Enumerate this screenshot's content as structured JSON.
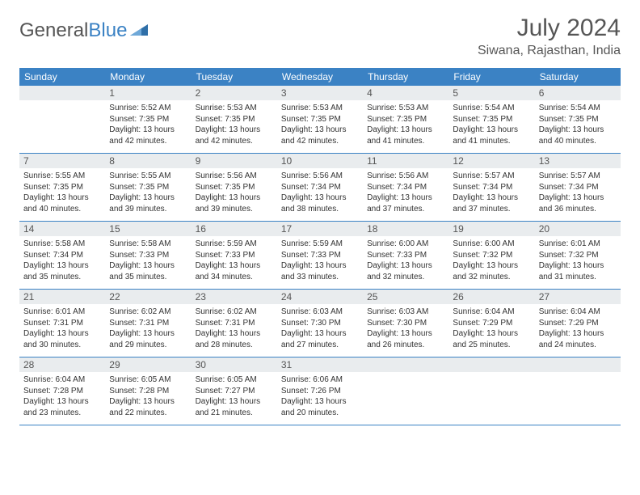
{
  "logo": {
    "textGray": "General",
    "textBlue": "Blue"
  },
  "title": "July 2024",
  "location": "Siwana, Rajasthan, India",
  "colors": {
    "headerBg": "#3b82c4",
    "headerText": "#ffffff",
    "dayNumBg": "#e9ecee",
    "borderColor": "#3b82c4",
    "bodyText": "#333333",
    "titleText": "#565656"
  },
  "dayNames": [
    "Sunday",
    "Monday",
    "Tuesday",
    "Wednesday",
    "Thursday",
    "Friday",
    "Saturday"
  ],
  "weeks": [
    [
      null,
      {
        "n": "1",
        "sr": "5:52 AM",
        "ss": "7:35 PM",
        "dl": "13 hours and 42 minutes."
      },
      {
        "n": "2",
        "sr": "5:53 AM",
        "ss": "7:35 PM",
        "dl": "13 hours and 42 minutes."
      },
      {
        "n": "3",
        "sr": "5:53 AM",
        "ss": "7:35 PM",
        "dl": "13 hours and 42 minutes."
      },
      {
        "n": "4",
        "sr": "5:53 AM",
        "ss": "7:35 PM",
        "dl": "13 hours and 41 minutes."
      },
      {
        "n": "5",
        "sr": "5:54 AM",
        "ss": "7:35 PM",
        "dl": "13 hours and 41 minutes."
      },
      {
        "n": "6",
        "sr": "5:54 AM",
        "ss": "7:35 PM",
        "dl": "13 hours and 40 minutes."
      }
    ],
    [
      {
        "n": "7",
        "sr": "5:55 AM",
        "ss": "7:35 PM",
        "dl": "13 hours and 40 minutes."
      },
      {
        "n": "8",
        "sr": "5:55 AM",
        "ss": "7:35 PM",
        "dl": "13 hours and 39 minutes."
      },
      {
        "n": "9",
        "sr": "5:56 AM",
        "ss": "7:35 PM",
        "dl": "13 hours and 39 minutes."
      },
      {
        "n": "10",
        "sr": "5:56 AM",
        "ss": "7:34 PM",
        "dl": "13 hours and 38 minutes."
      },
      {
        "n": "11",
        "sr": "5:56 AM",
        "ss": "7:34 PM",
        "dl": "13 hours and 37 minutes."
      },
      {
        "n": "12",
        "sr": "5:57 AM",
        "ss": "7:34 PM",
        "dl": "13 hours and 37 minutes."
      },
      {
        "n": "13",
        "sr": "5:57 AM",
        "ss": "7:34 PM",
        "dl": "13 hours and 36 minutes."
      }
    ],
    [
      {
        "n": "14",
        "sr": "5:58 AM",
        "ss": "7:34 PM",
        "dl": "13 hours and 35 minutes."
      },
      {
        "n": "15",
        "sr": "5:58 AM",
        "ss": "7:33 PM",
        "dl": "13 hours and 35 minutes."
      },
      {
        "n": "16",
        "sr": "5:59 AM",
        "ss": "7:33 PM",
        "dl": "13 hours and 34 minutes."
      },
      {
        "n": "17",
        "sr": "5:59 AM",
        "ss": "7:33 PM",
        "dl": "13 hours and 33 minutes."
      },
      {
        "n": "18",
        "sr": "6:00 AM",
        "ss": "7:33 PM",
        "dl": "13 hours and 32 minutes."
      },
      {
        "n": "19",
        "sr": "6:00 AM",
        "ss": "7:32 PM",
        "dl": "13 hours and 32 minutes."
      },
      {
        "n": "20",
        "sr": "6:01 AM",
        "ss": "7:32 PM",
        "dl": "13 hours and 31 minutes."
      }
    ],
    [
      {
        "n": "21",
        "sr": "6:01 AM",
        "ss": "7:31 PM",
        "dl": "13 hours and 30 minutes."
      },
      {
        "n": "22",
        "sr": "6:02 AM",
        "ss": "7:31 PM",
        "dl": "13 hours and 29 minutes."
      },
      {
        "n": "23",
        "sr": "6:02 AM",
        "ss": "7:31 PM",
        "dl": "13 hours and 28 minutes."
      },
      {
        "n": "24",
        "sr": "6:03 AM",
        "ss": "7:30 PM",
        "dl": "13 hours and 27 minutes."
      },
      {
        "n": "25",
        "sr": "6:03 AM",
        "ss": "7:30 PM",
        "dl": "13 hours and 26 minutes."
      },
      {
        "n": "26",
        "sr": "6:04 AM",
        "ss": "7:29 PM",
        "dl": "13 hours and 25 minutes."
      },
      {
        "n": "27",
        "sr": "6:04 AM",
        "ss": "7:29 PM",
        "dl": "13 hours and 24 minutes."
      }
    ],
    [
      {
        "n": "28",
        "sr": "6:04 AM",
        "ss": "7:28 PM",
        "dl": "13 hours and 23 minutes."
      },
      {
        "n": "29",
        "sr": "6:05 AM",
        "ss": "7:28 PM",
        "dl": "13 hours and 22 minutes."
      },
      {
        "n": "30",
        "sr": "6:05 AM",
        "ss": "7:27 PM",
        "dl": "13 hours and 21 minutes."
      },
      {
        "n": "31",
        "sr": "6:06 AM",
        "ss": "7:26 PM",
        "dl": "13 hours and 20 minutes."
      },
      null,
      null,
      null
    ]
  ],
  "labels": {
    "sunrise": "Sunrise:",
    "sunset": "Sunset:",
    "daylight": "Daylight:"
  }
}
